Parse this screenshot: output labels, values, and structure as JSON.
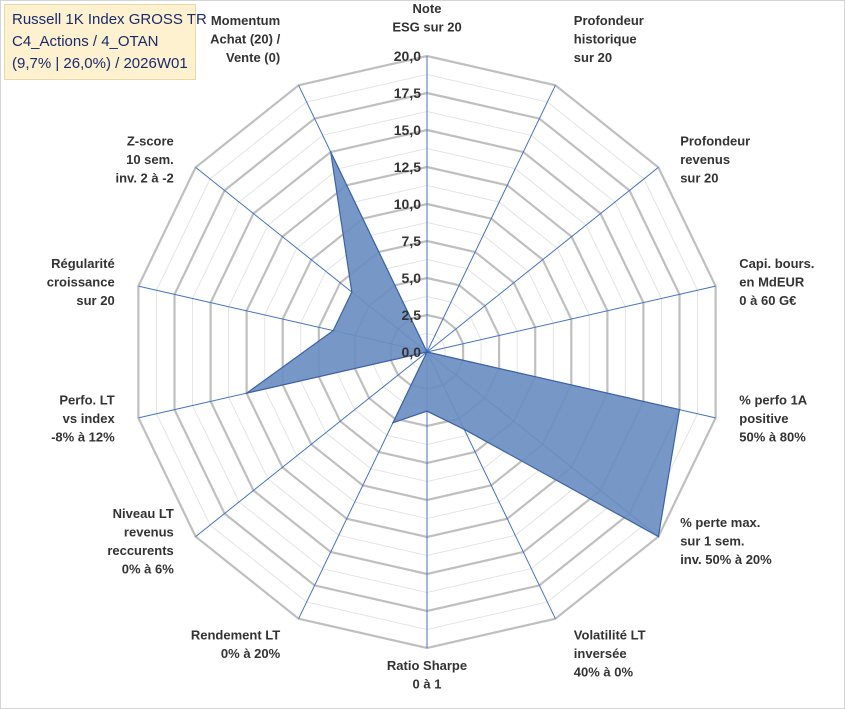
{
  "chart_data": {
    "type": "radar",
    "title_lines": [
      "Russell 1K Index GROSS TR",
      "C4_Actions / 4_OTAN",
      "(9,7% | 26,0%) / 2026W01"
    ],
    "r_range": [
      0,
      20
    ],
    "ticks": [
      "0,0",
      "2,5",
      "5,0",
      "7,5",
      "10,0",
      "12,5",
      "15,0",
      "17,5",
      "20,0"
    ],
    "axes": [
      {
        "label": [
          "Note",
          "ESG sur 20"
        ],
        "value": 0
      },
      {
        "label": [
          "Profondeur",
          "historique",
          "sur 20"
        ],
        "value": 0
      },
      {
        "label": [
          "Profondeur",
          "revenus",
          "sur 20"
        ],
        "value": 0
      },
      {
        "label": [
          "Capi. bours.",
          "en MdEUR",
          "0 à 60 G€"
        ],
        "value": 0
      },
      {
        "label": [
          "% perfo 1A",
          "positive",
          "50% à 80%"
        ],
        "value": 17.5
      },
      {
        "label": [
          "% perte max.",
          "sur 1 sem.",
          "inv. 50% à 20%"
        ],
        "value": 20
      },
      {
        "label": [
          "Volatilité LT",
          "inversée",
          "40% à 0%"
        ],
        "value": 5.8
      },
      {
        "label": [
          "Ratio Sharpe",
          "0 à 1"
        ],
        "value": 4.0
      },
      {
        "label": [
          "Rendement LT",
          "0% à 20%"
        ],
        "value": 5.3
      },
      {
        "label": [
          "Niveau LT",
          "revenus",
          "reccurents",
          "0% à 6%"
        ],
        "value": 0
      },
      {
        "label": [
          "Perfo. LT",
          "vs index",
          "-8% à 12%"
        ],
        "value": 12.5
      },
      {
        "label": [
          "Régularité",
          "croissance",
          "sur 20"
        ],
        "value": 6.5
      },
      {
        "label": [
          "Z-score",
          "10 sem.",
          "inv. 2 à -2"
        ],
        "value": 6.5
      },
      {
        "label": [
          "Momentum",
          "Achat (20) /",
          "Vente (0)"
        ],
        "value": 15.0
      }
    ],
    "colors": {
      "fill": "#6b8fc2",
      "stroke": "#3c62a8",
      "grid_major": "#bfbfbf",
      "grid_minor": "#e4e4e4",
      "axis_line": "#4472c4"
    }
  }
}
